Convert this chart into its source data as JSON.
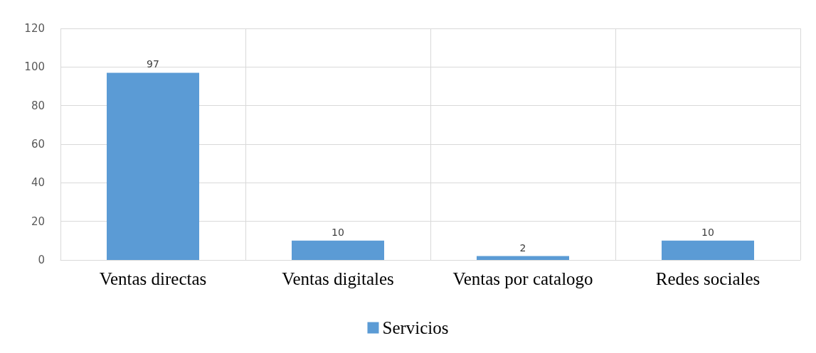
{
  "chart_data": {
    "type": "bar",
    "categories": [
      "Ventas directas",
      "Ventas digitales",
      "Ventas por catalogo",
      "Redes sociales"
    ],
    "series": [
      {
        "name": "Servicios",
        "color": "#5b9bd5",
        "values": [
          97,
          10,
          2,
          10
        ]
      }
    ],
    "ylim": [
      0,
      120
    ],
    "yticks": [
      0,
      20,
      40,
      60,
      80,
      100,
      120
    ],
    "grid": true,
    "legend": "bottom",
    "data_labels": true
  }
}
